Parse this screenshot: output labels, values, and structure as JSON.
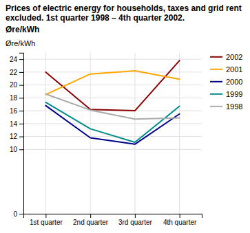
{
  "chart_data": {
    "type": "line",
    "title": "Prices of electric energy for households, taxes and grid rent excluded. 1st quarter 1998 – 4th quarter 2002.",
    "subtitle": "Øre/kWh",
    "y_label": "Øre/kWh",
    "categories": [
      "1st quarter",
      "2nd quarter",
      "3rd quarter",
      "4th quarter"
    ],
    "series": [
      {
        "name": "2002",
        "color": "#8B0000",
        "values": [
          22.0,
          16.2,
          16.0,
          23.8
        ]
      },
      {
        "name": "2001",
        "color": "#FFA500",
        "values": [
          18.5,
          21.7,
          22.2,
          20.9
        ]
      },
      {
        "name": "2000",
        "color": "#00008B",
        "values": [
          16.8,
          11.8,
          10.8,
          15.5
        ]
      },
      {
        "name": "1999",
        "color": "#008B8B",
        "values": [
          17.3,
          13.2,
          11.1,
          16.7
        ]
      },
      {
        "name": "1998",
        "color": "#AAAAAA",
        "values": [
          18.6,
          16.1,
          14.7,
          14.9
        ]
      }
    ],
    "ylim": [
      0,
      25
    ],
    "yticks": [
      0,
      10,
      12,
      14,
      16,
      18,
      20,
      22,
      24
    ],
    "grid": true,
    "legend": "right"
  }
}
